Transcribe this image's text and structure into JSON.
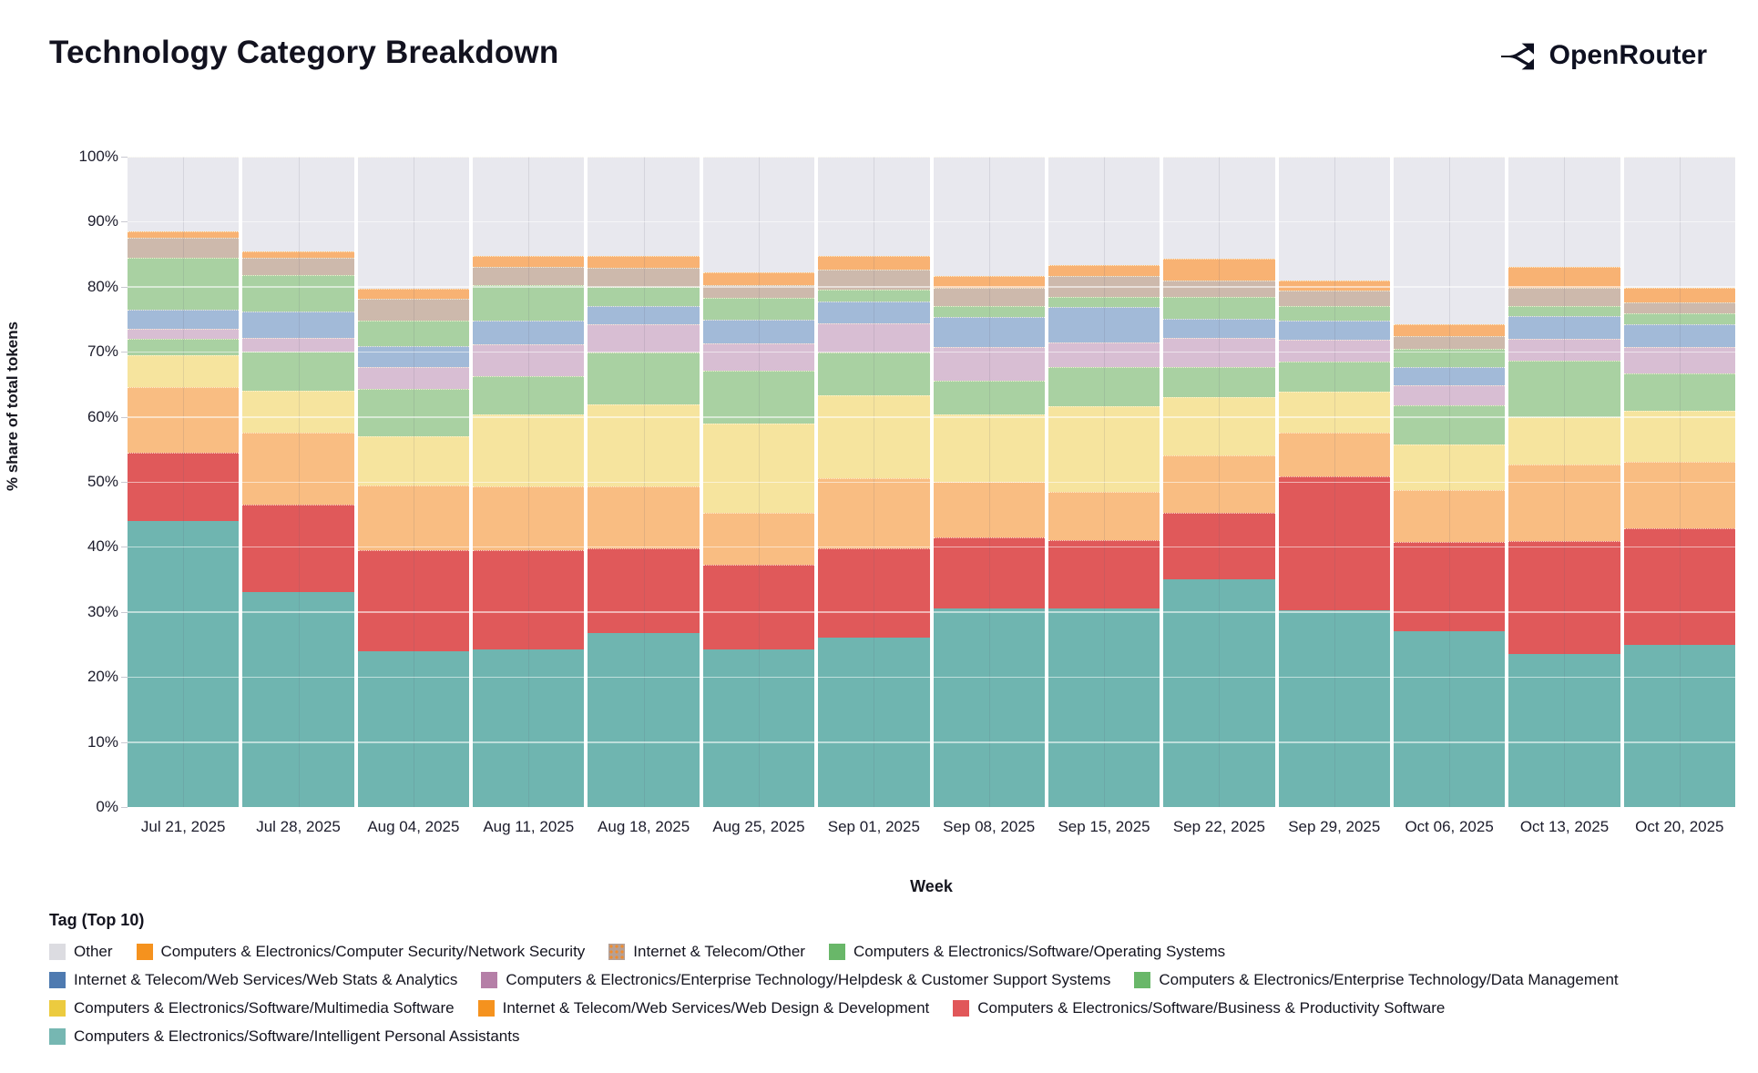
{
  "header": {
    "title": "Technology Category Breakdown",
    "brand": "OpenRouter"
  },
  "chart_data": {
    "type": "bar",
    "stacked": true,
    "stacked_unit": "percent",
    "title": "Technology Category Breakdown",
    "xlabel": "Week",
    "ylabel": "% share of total tokens",
    "ylim": [
      0,
      100
    ],
    "ytick_step": 10,
    "ytick_suffix": "%",
    "grid": true,
    "legend_title": "Tag (Top 10)",
    "legend_position": "bottom",
    "categories": [
      "Jul 21, 2025",
      "Jul 28, 2025",
      "Aug 04, 2025",
      "Aug 11, 2025",
      "Aug 18, 2025",
      "Aug 25, 2025",
      "Sep 01, 2025",
      "Sep 08, 2025",
      "Sep 15, 2025",
      "Sep 22, 2025",
      "Sep 29, 2025",
      "Oct 06, 2025",
      "Oct 13, 2025",
      "Oct 20, 2025"
    ],
    "series": [
      {
        "key": "ipa",
        "name": "Computers & Electronics/Software/Intelligent Personal Assistants",
        "bar_color": "#6fb5b0",
        "legend_color": "#76b7b2",
        "pattern": null,
        "values": [
          44.0,
          33.0,
          24.0,
          24.3,
          26.8,
          24.2,
          26.0,
          30.5,
          30.5,
          35.0,
          30.2,
          27.0,
          23.5,
          25.0
        ]
      },
      {
        "key": "bps",
        "name": "Computers & Electronics/Software/Business & Productivity Software",
        "bar_color": "#e0595a",
        "legend_color": "#e15759",
        "pattern": null,
        "values": [
          10.5,
          13.5,
          15.5,
          15.2,
          13.0,
          13.0,
          13.8,
          11.0,
          10.5,
          10.2,
          20.6,
          13.7,
          17.4,
          17.8
        ]
      },
      {
        "key": "wdd",
        "name": "Internet & Telecom/Web Services/Web Design & Development",
        "bar_color": "#f9bd82",
        "legend_color": "#f5921e",
        "pattern": null,
        "values": [
          10.0,
          11.0,
          10.0,
          9.8,
          9.5,
          8.0,
          10.7,
          8.5,
          7.5,
          8.8,
          6.8,
          8.0,
          11.7,
          10.3
        ]
      },
      {
        "key": "mms",
        "name": "Computers & Electronics/Software/Multimedia Software",
        "bar_color": "#f6e49e",
        "legend_color": "#eccb3f",
        "pattern": null,
        "values": [
          5.0,
          6.5,
          7.5,
          11.1,
          12.6,
          13.8,
          12.8,
          10.4,
          13.1,
          9.0,
          6.3,
          7.0,
          7.3,
          7.8
        ]
      },
      {
        "key": "dm",
        "name": "Computers & Electronics/Enterprise Technology/Data Management",
        "bar_color": "#a9d1a2",
        "legend_color": "#69b769",
        "pattern": null,
        "values": [
          2.5,
          6.0,
          7.3,
          5.9,
          8.0,
          8.1,
          6.6,
          5.1,
          6.1,
          4.7,
          4.6,
          6.1,
          8.8,
          5.8
        ]
      },
      {
        "key": "hd",
        "name": "Computers & Electronics/Enterprise Technology/Helpdesk & Customer Support Systems",
        "bar_color": "#d8bed3",
        "legend_color": "#b57fa7",
        "pattern": "faintdots",
        "values": [
          1.5,
          2.2,
          3.4,
          4.9,
          4.3,
          4.2,
          4.5,
          5.3,
          3.8,
          4.5,
          3.4,
          3.0,
          3.3,
          4.0
        ]
      },
      {
        "key": "wsa",
        "name": "Internet & Telecom/Web Services/Web Stats & Analytics",
        "bar_color": "#a2bad8",
        "legend_color": "#4e7ab0",
        "pattern": null,
        "values": [
          3.0,
          4.0,
          3.2,
          3.6,
          2.9,
          3.6,
          3.4,
          4.6,
          5.4,
          2.9,
          2.9,
          2.9,
          3.5,
          3.5
        ]
      },
      {
        "key": "os",
        "name": "Computers & Electronics/Software/Operating Systems",
        "bar_color": "#a9d1a2",
        "legend_color": "#69b769",
        "pattern": null,
        "values": [
          8.0,
          5.6,
          3.9,
          5.4,
          2.9,
          3.4,
          1.7,
          1.6,
          1.6,
          3.4,
          2.3,
          2.8,
          1.5,
          1.7
        ]
      },
      {
        "key": "ito",
        "name": "Internet & Telecom/Other",
        "bar_color": "#cdb9ac",
        "legend_color": "#b5a096",
        "pattern": "dots",
        "values": [
          3.0,
          2.7,
          3.3,
          2.9,
          2.9,
          2.0,
          3.2,
          2.9,
          3.1,
          2.5,
          2.3,
          1.9,
          2.9,
          1.7
        ]
      },
      {
        "key": "ns",
        "name": "Computers & Electronics/Computer Security/Network Security",
        "bar_color": "#f8b273",
        "legend_color": "#f5921e",
        "pattern": null,
        "values": [
          1.0,
          1.0,
          1.6,
          1.7,
          1.8,
          1.9,
          2.0,
          1.8,
          1.7,
          3.3,
          1.6,
          1.9,
          3.1,
          2.3
        ]
      },
      {
        "key": "other",
        "name": "Other",
        "bar_color": "#e8e8ee",
        "legend_color": "#dcdce1",
        "pattern": null,
        "values": [
          11.5,
          14.5,
          20.3,
          15.2,
          15.3,
          17.8,
          15.3,
          18.3,
          16.7,
          15.7,
          19.0,
          25.7,
          17.0,
          20.1
        ]
      }
    ],
    "legend_order": [
      "other",
      "ns",
      "ito",
      "os",
      "wsa",
      "hd",
      "dm",
      "mms",
      "wdd",
      "bps",
      "ipa"
    ]
  }
}
